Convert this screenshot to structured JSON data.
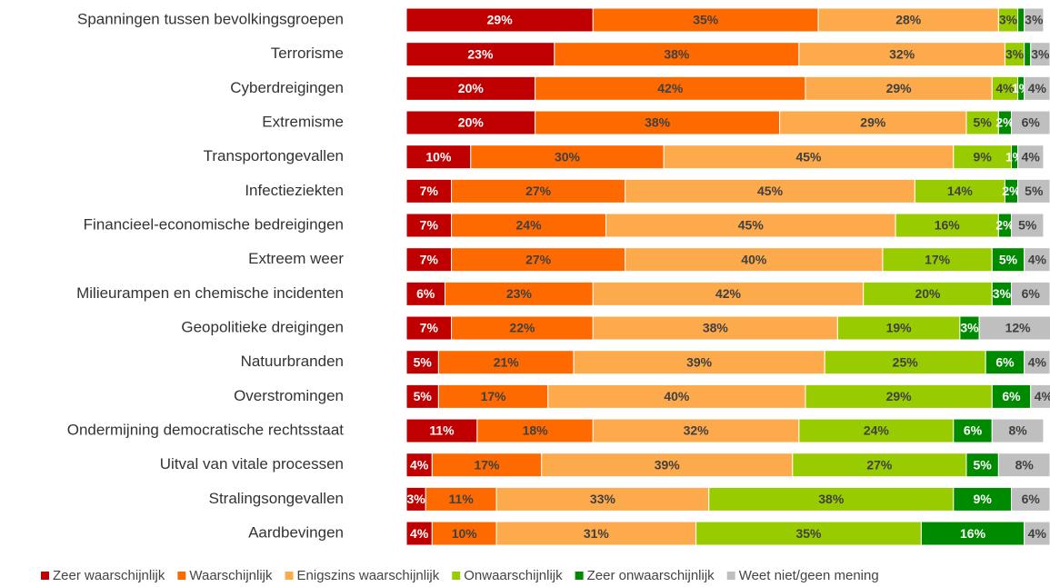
{
  "chart_data": {
    "type": "stacked-bar-horizontal",
    "categories": [
      "Spanningen tussen bevolkingsgroepen",
      "Terrorisme",
      "Cyberdreigingen",
      "Extremisme",
      "Transportongevallen",
      "Infectieziekten",
      "Financieel-economische bedreigingen",
      "Extreem weer",
      "Milieurampen en chemische incidenten",
      "Geopolitieke dreigingen",
      "Natuurbranden",
      "Overstromingen",
      "Ondermijning democratische rechtsstaat",
      "Uitval van vitale processen",
      "Stralingsongevallen",
      "Aardbevingen"
    ],
    "xlim": [
      0,
      100
    ],
    "legend": "bottom",
    "series": [
      {
        "name": "Zeer waarschijnlijk",
        "color": "#c00000",
        "values": [
          29,
          23,
          20,
          20,
          10,
          7,
          7,
          7,
          6,
          7,
          5,
          5,
          11,
          4,
          3,
          4
        ],
        "value_labels": [
          "29%",
          "23%",
          "20%",
          "20%",
          "10%",
          "7%",
          "7%",
          "7%",
          "6%",
          "7%",
          "5%",
          "5%",
          "11%",
          "4%",
          "3%",
          "4%"
        ]
      },
      {
        "name": "Waarschijnlijk",
        "color": "#ff6a00",
        "values": [
          35,
          38,
          42,
          38,
          30,
          27,
          24,
          27,
          23,
          22,
          21,
          17,
          18,
          17,
          11,
          10
        ],
        "value_labels": [
          "35%",
          "38%",
          "42%",
          "38%",
          "30%",
          "27%",
          "24%",
          "27%",
          "23%",
          "22%",
          "21%",
          "17%",
          "18%",
          "17%",
          "11%",
          "10%"
        ]
      },
      {
        "name": "Enigszins waarschijnlijk",
        "color": "#fdaa4c",
        "values": [
          28,
          32,
          29,
          29,
          45,
          45,
          45,
          40,
          42,
          38,
          39,
          40,
          32,
          39,
          33,
          31
        ],
        "value_labels": [
          "28%",
          "32%",
          "29%",
          "29%",
          "45%",
          "45%",
          "45%",
          "40%",
          "42%",
          "38%",
          "39%",
          "40%",
          "32%",
          "39%",
          "33%",
          "31%"
        ]
      },
      {
        "name": "Onwaarschijnlijk",
        "color": "#99cc00",
        "values": [
          3,
          3,
          4,
          5,
          9,
          14,
          16,
          17,
          20,
          19,
          25,
          29,
          24,
          27,
          38,
          35
        ],
        "value_labels": [
          "3%",
          "3%",
          "4%",
          "5%",
          "9%",
          "14%",
          "16%",
          "17%",
          "20%",
          "19%",
          "25%",
          "29%",
          "24%",
          "27%",
          "38%",
          "35%"
        ]
      },
      {
        "name": "Zeer onwaarschijnlijk",
        "color": "#008a00",
        "values": [
          1,
          1,
          1,
          2,
          1,
          2,
          2,
          5,
          3,
          3,
          6,
          6,
          6,
          5,
          9,
          16
        ],
        "value_labels": [
          null,
          null,
          "1%",
          "2%",
          "1%",
          "2%",
          "2%",
          "5%",
          "3%",
          "3%",
          "6%",
          "6%",
          "6%",
          "5%",
          "9%",
          "16%"
        ]
      },
      {
        "name": "Weet niet/geen mening",
        "color": "#bfbfbf",
        "values": [
          3,
          3,
          4,
          6,
          4,
          5,
          5,
          4,
          6,
          12,
          4,
          4,
          8,
          8,
          6,
          4
        ],
        "value_labels": [
          "3%",
          "3%",
          "4%",
          "6%",
          "4%",
          "5%",
          "5%",
          "4%",
          "6%",
          "12%",
          "4%",
          "4%",
          "8%",
          "8%",
          "6%",
          "4%"
        ]
      }
    ]
  }
}
